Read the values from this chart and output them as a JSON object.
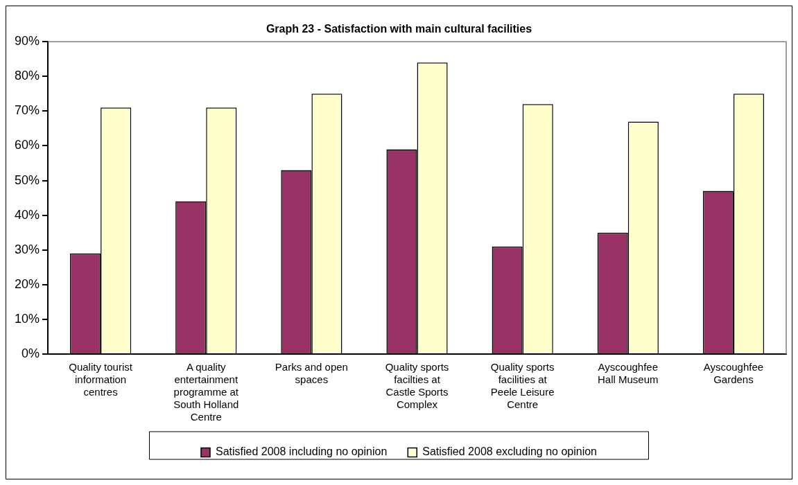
{
  "chart_data": {
    "type": "bar",
    "title": "Graph 23 - Satisfaction with main cultural facilities",
    "categories": [
      "Quality tourist information centres",
      "A quality entertainment programme at South Holland Centre",
      "Parks and open spaces",
      "Quality sports facilties at Castle Sports Complex",
      "Quality sports facilities at Peele Leisure Centre",
      "Ayscoughfee Hall Museum",
      "Ayscoughfee Gardens"
    ],
    "series": [
      {
        "name": "Satisfied 2008 including no opinion",
        "color": "#993366",
        "values": [
          29,
          44,
          53,
          59,
          31,
          35,
          47
        ]
      },
      {
        "name": "Satisfied 2008 excluding no opinion",
        "color": "#ffffcc",
        "values": [
          71,
          71,
          75,
          84,
          72,
          67,
          75
        ]
      }
    ],
    "ylim": [
      0,
      90
    ],
    "yticks": [
      {
        "value": 0,
        "label": "0%"
      },
      {
        "value": 10,
        "label": "10%"
      },
      {
        "value": 20,
        "label": "20%"
      },
      {
        "value": 30,
        "label": "30%"
      },
      {
        "value": 40,
        "label": "40%"
      },
      {
        "value": 50,
        "label": "50%"
      },
      {
        "value": 60,
        "label": "60%"
      },
      {
        "value": 70,
        "label": "70%"
      },
      {
        "value": 80,
        "label": "80%"
      },
      {
        "value": 90,
        "label": "90%"
      }
    ],
    "grid": false,
    "legend": "bottom"
  }
}
